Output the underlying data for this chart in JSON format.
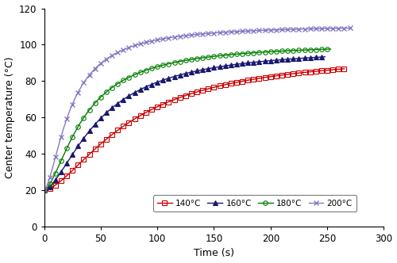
{
  "title": "",
  "xlabel": "Time (s)",
  "ylabel": "Center temperature (°C)",
  "xlim": [
    0,
    300
  ],
  "ylim": [
    0,
    120
  ],
  "xticks": [
    0,
    50,
    100,
    150,
    200,
    250,
    300
  ],
  "yticks": [
    0,
    20,
    40,
    60,
    80,
    100,
    120
  ],
  "series": [
    {
      "label": "140°C",
      "color": "#cc0000",
      "marker": "s",
      "T0": 20,
      "T_max": 96,
      "k": 0.013,
      "n": 1.6,
      "t_end": 265,
      "marker_interval": 5
    },
    {
      "label": "160°C",
      "color": "#191970",
      "marker": "^",
      "T0": 20,
      "T_max": 99,
      "k": 0.02,
      "n": 1.6,
      "t_end": 248,
      "marker_interval": 5
    },
    {
      "label": "180°C",
      "color": "#008000",
      "marker": "o",
      "T0": 20,
      "T_max": 101,
      "k": 0.028,
      "n": 1.6,
      "t_end": 253,
      "marker_interval": 5
    },
    {
      "label": "200°C",
      "color": "#8878c3",
      "marker": "x",
      "T0": 20,
      "T_max": 111,
      "k": 0.042,
      "n": 1.6,
      "t_end": 270,
      "marker_interval": 5
    }
  ],
  "legend_loc": "lower right",
  "figsize": [
    5.0,
    3.32
  ],
  "dpi": 100
}
